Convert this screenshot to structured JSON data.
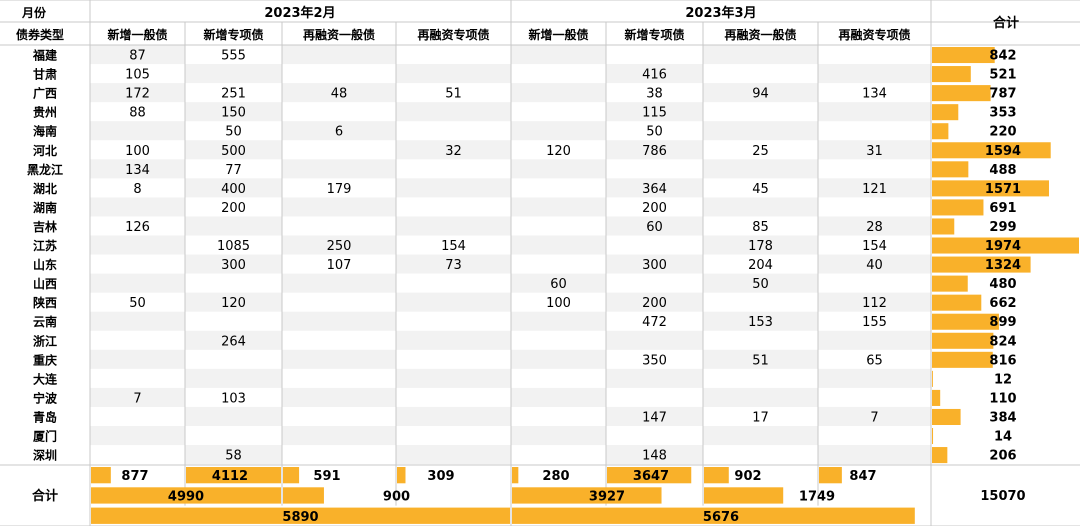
{
  "header": {
    "month_label": "月份",
    "type_label": "债券类型",
    "total_label": "合计",
    "months": [
      "2023年2月",
      "2023年3月"
    ],
    "bond_types": [
      "新增一般债",
      "新增专项债",
      "再融资一般债",
      "再融资专项债"
    ]
  },
  "colors": {
    "bar": "#f9b12a",
    "zebra": "#f2f2f2",
    "border": "#c8c8c8"
  },
  "chart_data": {
    "type": "table",
    "columns": [
      "2023年2月 新增一般债",
      "2023年2月 新增专项债",
      "2023年2月 再融资一般债",
      "2023年2月 再融资专项债",
      "2023年3月 新增一般债",
      "2023年3月 新增专项债",
      "2023年3月 再融资一般债",
      "2023年3月 再融资专项债",
      "合计"
    ],
    "rows": [
      {
        "region": "福建",
        "values": [
          87,
          555,
          null,
          null,
          null,
          null,
          null,
          null
        ],
        "total": 842
      },
      {
        "region": "甘肃",
        "values": [
          105,
          null,
          null,
          null,
          null,
          416,
          null,
          null
        ],
        "total": 521
      },
      {
        "region": "广西",
        "values": [
          172,
          251,
          48,
          51,
          null,
          38,
          94,
          134
        ],
        "total": 787
      },
      {
        "region": "贵州",
        "values": [
          88,
          150,
          null,
          null,
          null,
          115,
          null,
          null
        ],
        "total": 353
      },
      {
        "region": "海南",
        "values": [
          null,
          50,
          6,
          null,
          null,
          50,
          null,
          null
        ],
        "total": 220
      },
      {
        "region": "河北",
        "values": [
          100,
          500,
          null,
          32,
          120,
          786,
          25,
          31
        ],
        "total": 1594
      },
      {
        "region": "黑龙江",
        "values": [
          134,
          77,
          null,
          null,
          null,
          null,
          null,
          null
        ],
        "total": 488
      },
      {
        "region": "湖北",
        "values": [
          8,
          400,
          179,
          null,
          null,
          364,
          45,
          121
        ],
        "total": 1571
      },
      {
        "region": "湖南",
        "values": [
          null,
          200,
          null,
          null,
          null,
          200,
          null,
          null
        ],
        "total": 691
      },
      {
        "region": "吉林",
        "values": [
          126,
          null,
          null,
          null,
          null,
          60,
          85,
          28
        ],
        "total": 299
      },
      {
        "region": "江苏",
        "values": [
          null,
          1085,
          250,
          154,
          null,
          null,
          178,
          154
        ],
        "total": 1974
      },
      {
        "region": "山东",
        "values": [
          null,
          300,
          107,
          73,
          null,
          300,
          204,
          40
        ],
        "total": 1324
      },
      {
        "region": "山西",
        "values": [
          null,
          null,
          null,
          null,
          60,
          null,
          50,
          null
        ],
        "total": 480
      },
      {
        "region": "陕西",
        "values": [
          50,
          120,
          null,
          null,
          100,
          200,
          null,
          112
        ],
        "total": 662
      },
      {
        "region": "云南",
        "values": [
          null,
          null,
          null,
          null,
          null,
          472,
          153,
          155
        ],
        "total": 899
      },
      {
        "region": "浙江",
        "values": [
          null,
          264,
          null,
          null,
          null,
          null,
          null,
          null
        ],
        "total": 824
      },
      {
        "region": "重庆",
        "values": [
          null,
          null,
          null,
          null,
          null,
          350,
          51,
          65
        ],
        "total": 816
      },
      {
        "region": "大连",
        "values": [
          null,
          null,
          null,
          null,
          null,
          null,
          null,
          null
        ],
        "total": 12
      },
      {
        "region": "宁波",
        "values": [
          7,
          103,
          null,
          null,
          null,
          null,
          null,
          null
        ],
        "total": 110
      },
      {
        "region": "青岛",
        "values": [
          null,
          null,
          null,
          null,
          null,
          147,
          17,
          7
        ],
        "total": 384
      },
      {
        "region": "厦门",
        "values": [
          null,
          null,
          null,
          null,
          null,
          null,
          null,
          null
        ],
        "total": 14
      },
      {
        "region": "深圳",
        "values": [
          null,
          58,
          null,
          null,
          null,
          148,
          null,
          null
        ],
        "total": 206
      }
    ],
    "summary": {
      "label": "合计",
      "by_type": [
        877,
        4112,
        591,
        309,
        280,
        3647,
        902,
        847
      ],
      "by_category": [
        4990,
        900,
        3927,
        1749
      ],
      "by_month": [
        5890,
        5676
      ],
      "grand_total": 15070
    }
  }
}
